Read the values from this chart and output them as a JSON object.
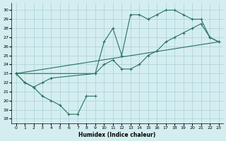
{
  "xlabel": "Humidex (Indice chaleur)",
  "bg_color": "#d4eef0",
  "line_color": "#2a7060",
  "grid_color": "#aacfd8",
  "xlim": [
    -0.5,
    23.5
  ],
  "ylim": [
    17.5,
    30.8
  ],
  "xticks": [
    0,
    1,
    2,
    3,
    4,
    5,
    6,
    7,
    8,
    9,
    10,
    11,
    12,
    13,
    14,
    15,
    16,
    17,
    18,
    19,
    20,
    21,
    22,
    23
  ],
  "yticks": [
    18,
    19,
    20,
    21,
    22,
    23,
    24,
    25,
    26,
    27,
    28,
    29,
    30
  ],
  "line1_zigzag": {
    "x": [
      0,
      1,
      2,
      3,
      4,
      5,
      6,
      7,
      8,
      9
    ],
    "y": [
      23,
      22,
      21.5,
      20.5,
      20,
      19.5,
      18.5,
      18.5,
      20.5,
      20.5
    ]
  },
  "line2_straight": {
    "x": [
      0,
      23
    ],
    "y": [
      23,
      26.5
    ]
  },
  "line3_upper": {
    "x": [
      0,
      1,
      2,
      3,
      4,
      9,
      10,
      11,
      12,
      13,
      14,
      15,
      16,
      17,
      18,
      19,
      20,
      21,
      22,
      23
    ],
    "y": [
      23,
      22,
      21.5,
      22,
      22.5,
      23,
      26.5,
      28,
      25,
      29.5,
      29.5,
      29,
      29.5,
      30,
      30,
      29.5,
      29,
      29,
      27,
      26.5
    ]
  },
  "line4_mid": {
    "x": [
      0,
      9,
      10,
      11,
      12,
      13,
      14,
      15,
      16,
      17,
      18,
      19,
      20,
      21,
      22,
      23
    ],
    "y": [
      23,
      23,
      24,
      24.5,
      23.5,
      23.5,
      24,
      25,
      25.5,
      26.5,
      27,
      27.5,
      28,
      28.5,
      27,
      26.5
    ]
  }
}
